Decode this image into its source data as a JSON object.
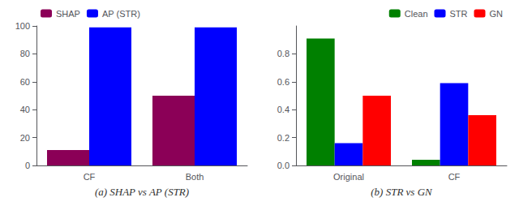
{
  "chart_data": [
    {
      "type": "bar",
      "xlabel": "(a) SHAP vs AP (STR)",
      "categories": [
        "CF",
        "Both"
      ],
      "series": [
        {
          "name": "SHAP",
          "color": "#8B0057",
          "values": [
            11,
            50
          ]
        },
        {
          "name": "AP (STR)",
          "color": "#0000FF",
          "values": [
            99,
            99
          ]
        }
      ],
      "ylim": [
        0,
        100
      ],
      "yticks": [
        0,
        20,
        40,
        60,
        80,
        100
      ],
      "legend": "upper left",
      "grid": false
    },
    {
      "type": "bar",
      "xlabel": "(b) STR vs GN",
      "categories": [
        "Original",
        "CF"
      ],
      "series": [
        {
          "name": "Clean",
          "color": "#008000",
          "values": [
            0.91,
            0.04
          ]
        },
        {
          "name": "STR",
          "color": "#0000FF",
          "values": [
            0.16,
            0.59
          ]
        },
        {
          "name": "GN",
          "color": "#FF0000",
          "values": [
            0.5,
            0.36
          ]
        }
      ],
      "ylim": [
        0,
        1.0
      ],
      "yticks": [
        {
          "value": 0.0,
          "label": "0.0"
        },
        0.2,
        0.4,
        0.6,
        0.8
      ],
      "legend": "upper right",
      "grid": false
    }
  ]
}
